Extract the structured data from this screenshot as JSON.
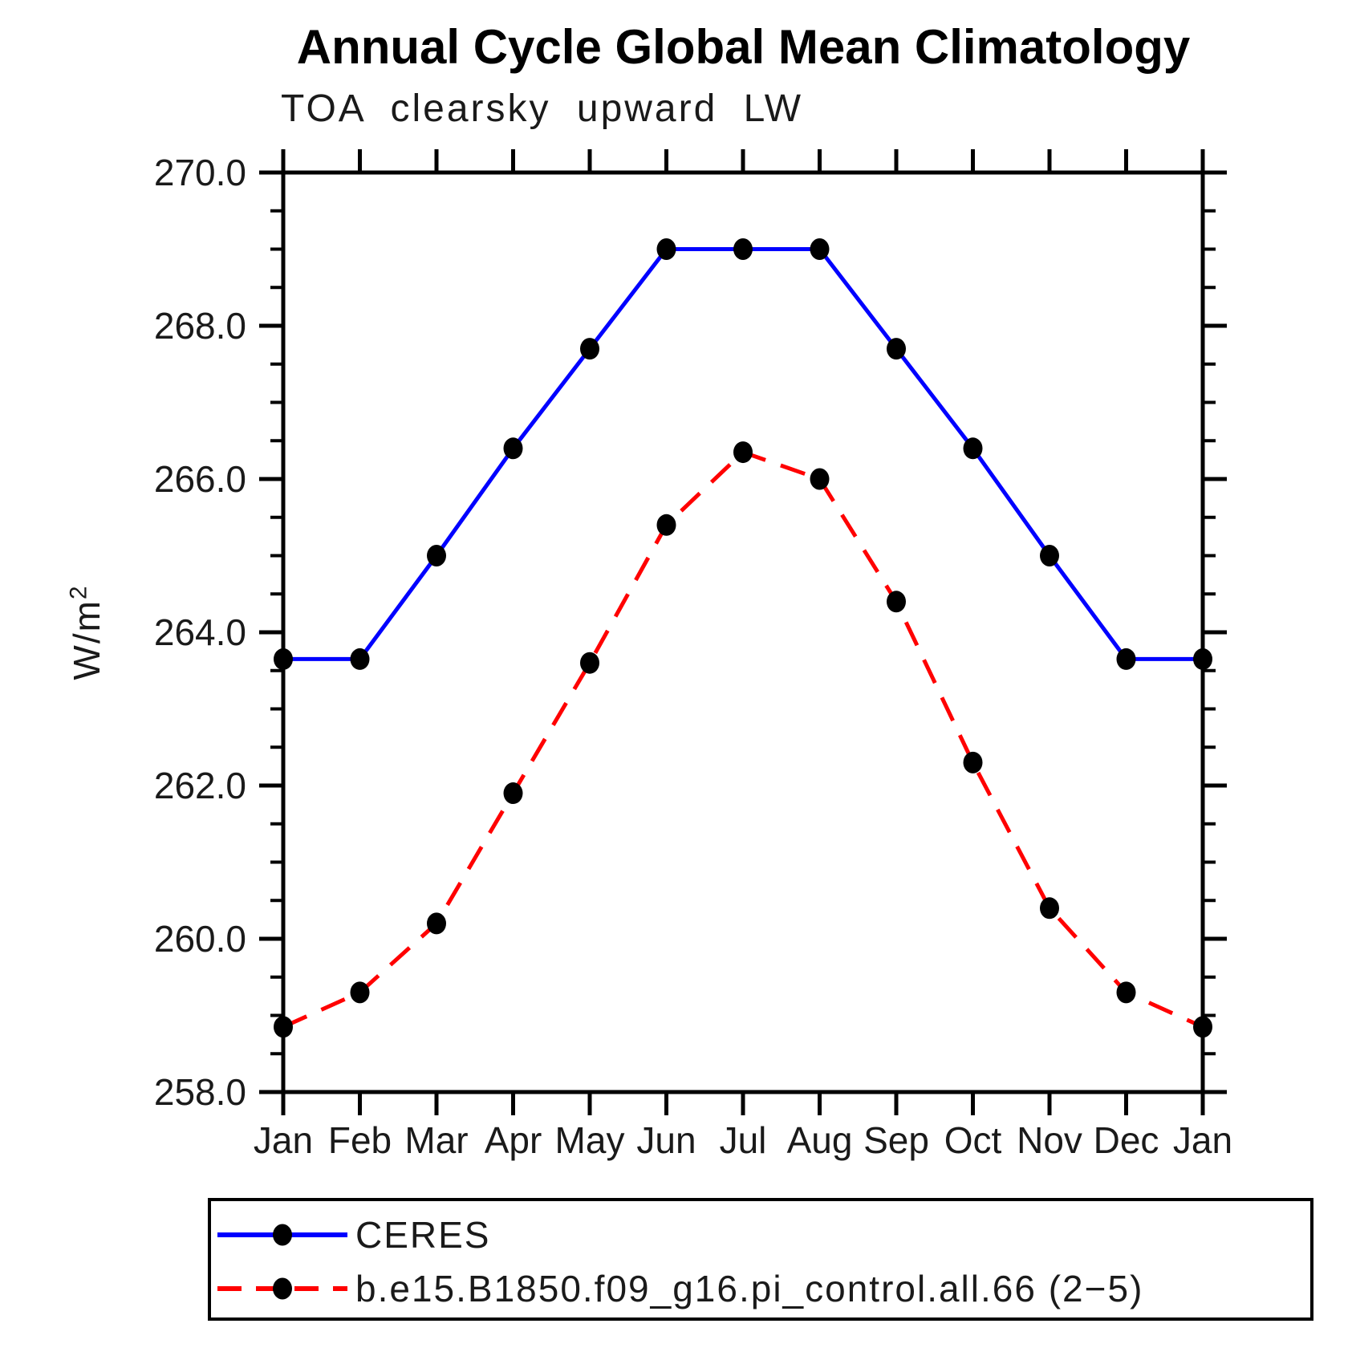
{
  "chart_data": {
    "type": "line",
    "title": "Annual Cycle Global Mean Climatology",
    "subtitle": "TOA clearsky upward LW",
    "ylabel_base": "W/m",
    "ylabel_sup": "2",
    "categories": [
      "Jan",
      "Feb",
      "Mar",
      "Apr",
      "May",
      "Jun",
      "Jul",
      "Aug",
      "Sep",
      "Oct",
      "Nov",
      "Dec",
      "Jan"
    ],
    "ylim": [
      258.0,
      270.0
    ],
    "y_major_step": 2.0,
    "y_minor_step": 0.5,
    "y_tick_labels": [
      "270.0",
      "268.0",
      "266.0",
      "264.0",
      "262.0",
      "260.0",
      "258.0"
    ],
    "grid": false,
    "legend_position": "bottom",
    "axis_color": "#000000",
    "marker_color": "#000000",
    "series": [
      {
        "name": "CERES",
        "color": "#0000ff",
        "line_style": "solid",
        "marker": "circle",
        "values": [
          263.65,
          263.65,
          265.0,
          266.4,
          267.7,
          269.0,
          269.0,
          269.0,
          267.7,
          266.4,
          265.0,
          263.65,
          263.65
        ]
      },
      {
        "name": "b.e15.B1850.f09_g16.pi_control.all.66 (2−5)",
        "color": "#ff0000",
        "line_style": "dashed",
        "marker": "circle",
        "values": [
          258.85,
          259.3,
          260.2,
          261.9,
          263.6,
          265.4,
          266.35,
          266.0,
          264.4,
          262.3,
          260.4,
          259.3,
          258.85
        ]
      }
    ]
  }
}
